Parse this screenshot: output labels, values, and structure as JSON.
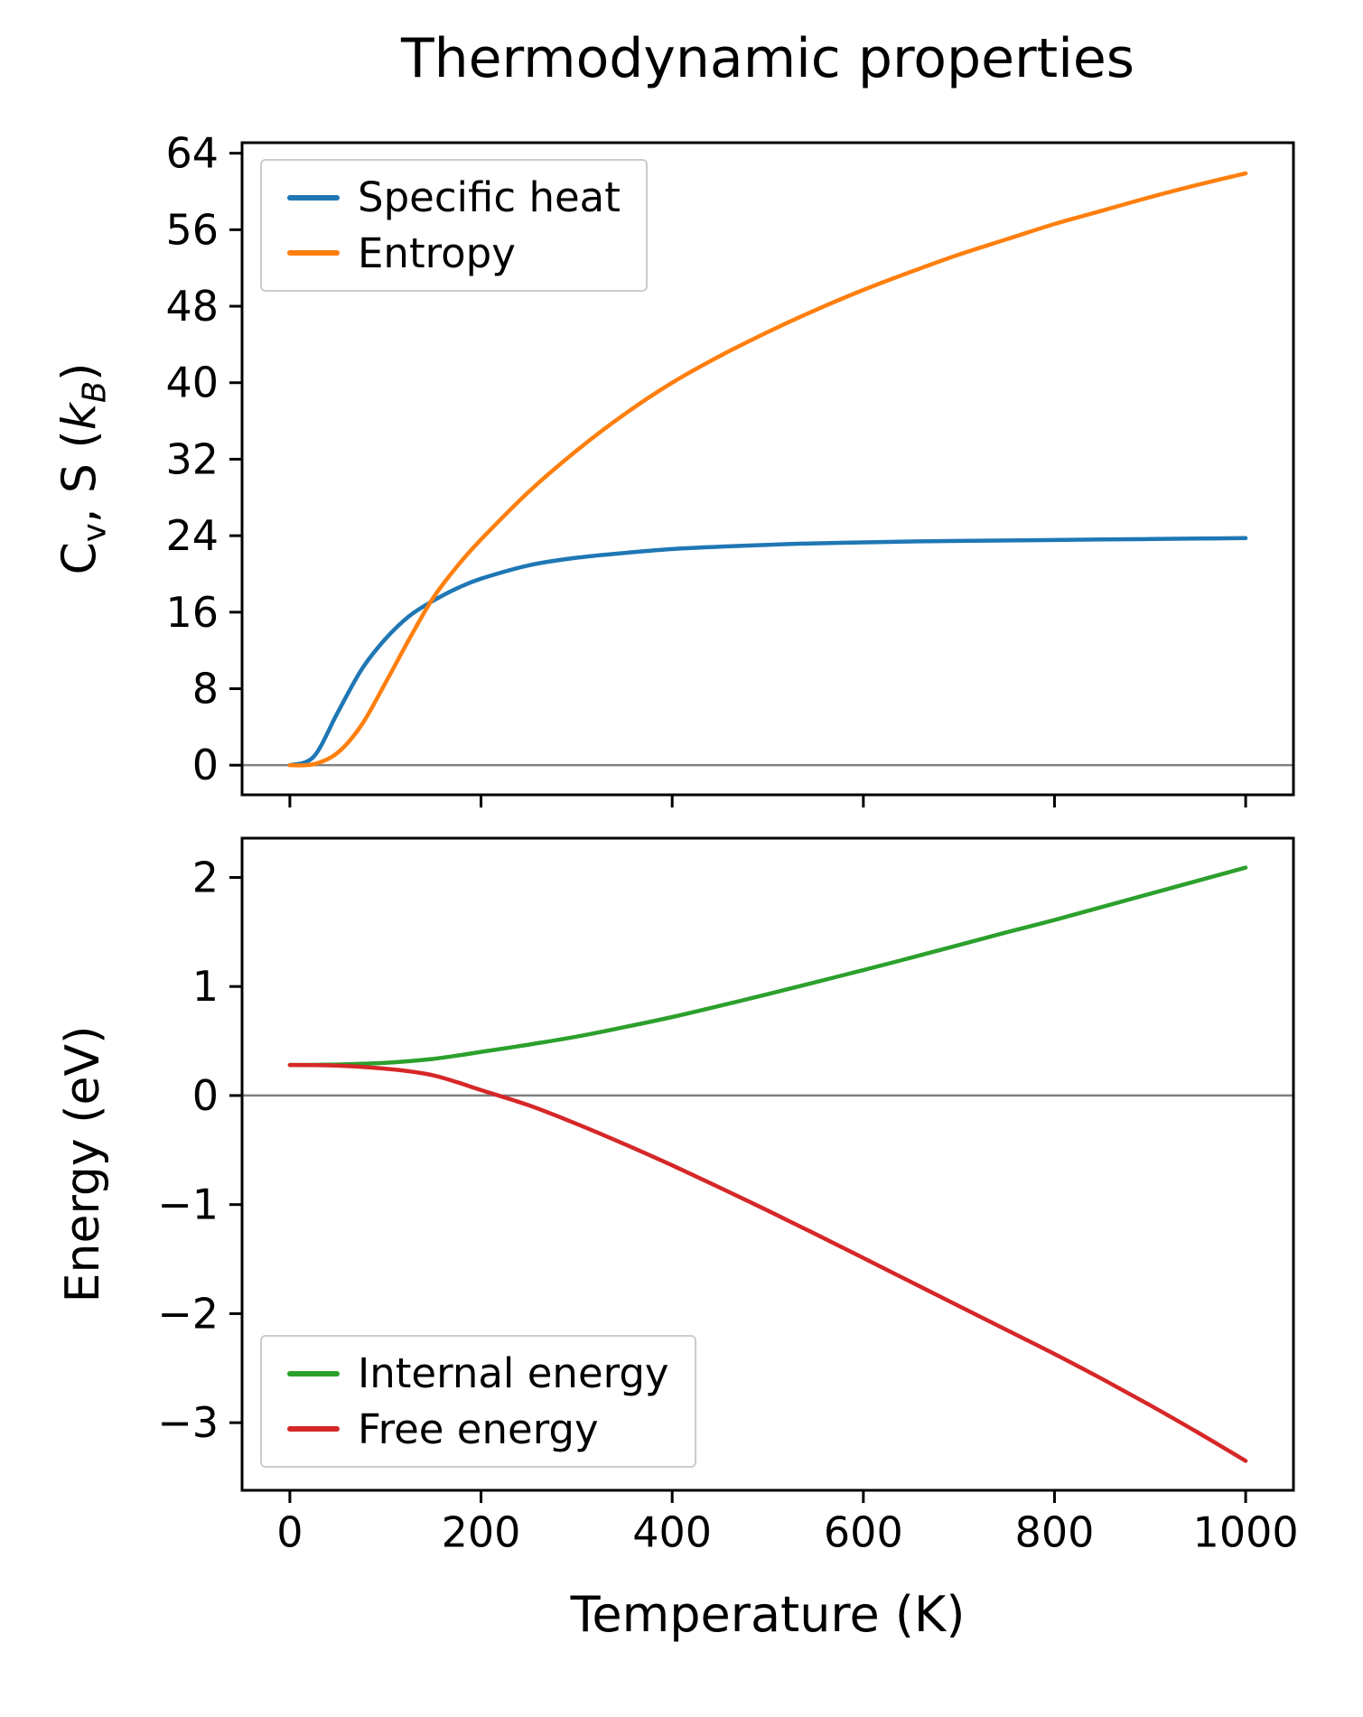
{
  "ylabel_top_parts": {
    "c": "C",
    "v": "v",
    "mid": ", S (",
    "k": "k",
    "b": "B",
    "close": ")"
  },
  "chart_data": [
    {
      "type": "line",
      "title": "Thermodynamic properties",
      "ylabel": "C_v, S (k_B)",
      "xlabel": "",
      "xlim": [
        -50,
        1050
      ],
      "ylim": [
        -3.1,
        65.1
      ],
      "xticks": [
        0,
        200,
        400,
        600,
        800,
        1000
      ],
      "yticks": [
        0,
        8,
        16,
        24,
        32,
        40,
        48,
        56,
        64
      ],
      "show_xtick_labels": false,
      "zero_line": true,
      "grid": false,
      "legend_position": "upper left",
      "series": [
        {
          "name": "Specific heat",
          "color": "#1f77b4",
          "x": [
            0,
            25,
            50,
            75,
            100,
            125,
            150,
            175,
            200,
            250,
            300,
            350,
            400,
            450,
            500,
            550,
            600,
            650,
            700,
            750,
            800,
            850,
            900,
            950,
            1000
          ],
          "y": [
            0,
            0.9,
            5.5,
            10.0,
            13.2,
            15.6,
            17.2,
            18.5,
            19.5,
            20.9,
            21.7,
            22.2,
            22.6,
            22.85,
            23.05,
            23.2,
            23.3,
            23.4,
            23.45,
            23.5,
            23.55,
            23.6,
            23.65,
            23.7,
            23.75
          ]
        },
        {
          "name": "Entropy",
          "color": "#ff7f0e",
          "x": [
            0,
            25,
            50,
            75,
            100,
            125,
            150,
            175,
            200,
            250,
            300,
            350,
            400,
            450,
            500,
            550,
            600,
            650,
            700,
            750,
            800,
            850,
            900,
            950,
            1000
          ],
          "y": [
            0,
            0.1,
            1.3,
            4.2,
            8.6,
            13.2,
            17.5,
            20.8,
            23.6,
            28.6,
            32.9,
            36.7,
            40.0,
            42.8,
            45.3,
            47.6,
            49.7,
            51.6,
            53.4,
            55.0,
            56.6,
            58.0,
            59.4,
            60.7,
            61.9
          ]
        }
      ]
    },
    {
      "type": "line",
      "title": "",
      "ylabel": "Energy (eV)",
      "xlabel": "Temperature (K)",
      "xlim": [
        -50,
        1050
      ],
      "ylim": [
        -3.62,
        2.36
      ],
      "xticks": [
        0,
        200,
        400,
        600,
        800,
        1000
      ],
      "yticks": [
        -3,
        -2,
        -1,
        0,
        1,
        2
      ],
      "show_xtick_labels": true,
      "zero_line": true,
      "grid": false,
      "legend_position": "lower left",
      "series": [
        {
          "name": "Internal energy",
          "color": "#2ca02c",
          "x": [
            0,
            25,
            50,
            75,
            100,
            125,
            150,
            175,
            200,
            250,
            300,
            350,
            400,
            450,
            500,
            550,
            600,
            650,
            700,
            750,
            800,
            850,
            900,
            950,
            1000
          ],
          "y": [
            0.28,
            0.281,
            0.284,
            0.291,
            0.3,
            0.315,
            0.336,
            0.366,
            0.4,
            0.467,
            0.54,
            0.627,
            0.72,
            0.823,
            0.93,
            1.04,
            1.15,
            1.264,
            1.38,
            1.497,
            1.61,
            1.73,
            1.85,
            1.97,
            2.09
          ]
        },
        {
          "name": "Free energy",
          "color": "#d62728",
          "x": [
            0,
            25,
            50,
            75,
            100,
            125,
            150,
            175,
            200,
            250,
            300,
            350,
            400,
            450,
            500,
            550,
            600,
            650,
            700,
            750,
            800,
            850,
            900,
            950,
            1000
          ],
          "y": [
            0.28,
            0.279,
            0.274,
            0.263,
            0.246,
            0.222,
            0.185,
            0.122,
            0.05,
            -0.09,
            -0.26,
            -0.445,
            -0.64,
            -0.845,
            -1.055,
            -1.27,
            -1.49,
            -1.71,
            -1.93,
            -2.15,
            -2.37,
            -2.6,
            -2.84,
            -3.09,
            -3.35
          ]
        }
      ]
    }
  ]
}
